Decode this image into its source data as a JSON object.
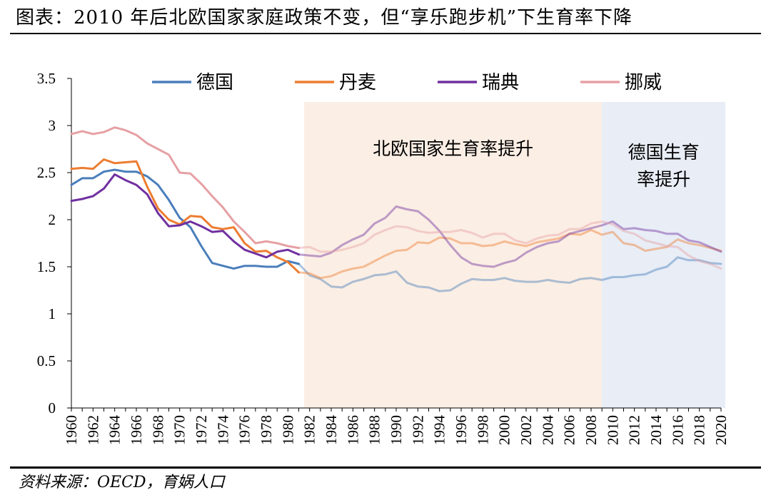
{
  "header": {
    "title": "图表：2010 年后北欧国家家庭政策不变，但“享乐跑步机”下生育率下降"
  },
  "footer": {
    "source": "资料来源：OECD，育娲人口"
  },
  "chart_data": {
    "type": "line",
    "x": [
      1960,
      1961,
      1962,
      1963,
      1964,
      1965,
      1966,
      1967,
      1968,
      1969,
      1970,
      1971,
      1972,
      1973,
      1974,
      1975,
      1976,
      1977,
      1978,
      1979,
      1980,
      1981,
      1982,
      1983,
      1984,
      1985,
      1986,
      1987,
      1988,
      1989,
      1990,
      1991,
      1992,
      1993,
      1994,
      1995,
      1996,
      1997,
      1998,
      1999,
      2000,
      2001,
      2002,
      2003,
      2004,
      2005,
      2006,
      2007,
      2008,
      2009,
      2010,
      2011,
      2012,
      2013,
      2014,
      2015,
      2016,
      2017,
      2018,
      2019,
      2020
    ],
    "x_tick_labels": [
      "1960",
      "1962",
      "1964",
      "1966",
      "1968",
      "1970",
      "1972",
      "1974",
      "1976",
      "1978",
      "1980",
      "1982",
      "1984",
      "1986",
      "1988",
      "1990",
      "1992",
      "1994",
      "1996",
      "1998",
      "2000",
      "2002",
      "2004",
      "2006",
      "2008",
      "2010",
      "2012",
      "2014",
      "2016",
      "2018",
      "2020"
    ],
    "y_tick_labels": [
      "0",
      "0.5",
      "1",
      "1.5",
      "2",
      "2.5",
      "3",
      "3.5"
    ],
    "ylim": [
      0,
      3.5
    ],
    "xlim": [
      1960,
      2020
    ],
    "series": [
      {
        "name": "德国",
        "color": "#4a7ebb",
        "values": [
          2.37,
          2.44,
          2.44,
          2.51,
          2.53,
          2.51,
          2.51,
          2.46,
          2.37,
          2.21,
          2.02,
          1.92,
          1.72,
          1.54,
          1.51,
          1.48,
          1.51,
          1.51,
          1.5,
          1.5,
          1.56,
          1.53,
          1.41,
          1.37,
          1.29,
          1.28,
          1.34,
          1.37,
          1.41,
          1.42,
          1.45,
          1.33,
          1.29,
          1.28,
          1.24,
          1.25,
          1.32,
          1.37,
          1.36,
          1.36,
          1.38,
          1.35,
          1.34,
          1.34,
          1.36,
          1.34,
          1.33,
          1.37,
          1.38,
          1.36,
          1.39,
          1.39,
          1.41,
          1.42,
          1.47,
          1.5,
          1.6,
          1.57,
          1.57,
          1.54,
          1.53
        ]
      },
      {
        "name": "丹麦",
        "color": "#ed7d31",
        "values": [
          2.54,
          2.55,
          2.54,
          2.64,
          2.6,
          2.61,
          2.62,
          2.35,
          2.12,
          2.0,
          1.95,
          2.04,
          2.03,
          1.92,
          1.9,
          1.92,
          1.75,
          1.66,
          1.67,
          1.6,
          1.55,
          1.44,
          1.43,
          1.38,
          1.4,
          1.45,
          1.48,
          1.5,
          1.56,
          1.62,
          1.67,
          1.68,
          1.76,
          1.75,
          1.81,
          1.8,
          1.75,
          1.75,
          1.72,
          1.73,
          1.77,
          1.74,
          1.72,
          1.76,
          1.78,
          1.8,
          1.85,
          1.84,
          1.89,
          1.84,
          1.87,
          1.75,
          1.73,
          1.67,
          1.69,
          1.71,
          1.79,
          1.75,
          1.73,
          1.7,
          1.67
        ]
      },
      {
        "name": "瑞典",
        "color": "#7030a0",
        "values": [
          2.2,
          2.22,
          2.25,
          2.33,
          2.48,
          2.42,
          2.37,
          2.27,
          2.07,
          1.93,
          1.94,
          1.98,
          1.93,
          1.87,
          1.88,
          1.77,
          1.68,
          1.64,
          1.6,
          1.66,
          1.68,
          1.63,
          1.62,
          1.61,
          1.65,
          1.73,
          1.79,
          1.84,
          1.96,
          2.02,
          2.14,
          2.11,
          2.09,
          2.0,
          1.88,
          1.73,
          1.6,
          1.53,
          1.51,
          1.5,
          1.54,
          1.57,
          1.65,
          1.71,
          1.75,
          1.77,
          1.85,
          1.88,
          1.91,
          1.94,
          1.98,
          1.9,
          1.91,
          1.89,
          1.88,
          1.85,
          1.85,
          1.78,
          1.76,
          1.71,
          1.66
        ]
      },
      {
        "name": "挪威",
        "color": "#e6a0a4",
        "values": [
          2.91,
          2.94,
          2.91,
          2.93,
          2.98,
          2.95,
          2.9,
          2.81,
          2.75,
          2.69,
          2.5,
          2.49,
          2.38,
          2.25,
          2.13,
          1.98,
          1.87,
          1.75,
          1.77,
          1.75,
          1.72,
          1.7,
          1.71,
          1.66,
          1.66,
          1.68,
          1.71,
          1.75,
          1.84,
          1.89,
          1.93,
          1.92,
          1.88,
          1.86,
          1.87,
          1.87,
          1.89,
          1.86,
          1.81,
          1.85,
          1.85,
          1.78,
          1.75,
          1.8,
          1.83,
          1.84,
          1.9,
          1.9,
          1.96,
          1.98,
          1.95,
          1.88,
          1.85,
          1.78,
          1.75,
          1.72,
          1.71,
          1.62,
          1.56,
          1.53,
          1.48
        ]
      }
    ],
    "regions": [
      {
        "label": "北欧国家生育率提升",
        "from": 1981.5,
        "to": 2009.0,
        "color": "#fbeee4"
      },
      {
        "label_lines": [
          "德国生育",
          "率提升"
        ],
        "from": 2009.0,
        "to": 2020.4,
        "color": "#e8edf6"
      }
    ],
    "muted_after": 1981.5,
    "legend_position": "top",
    "grid": false
  }
}
